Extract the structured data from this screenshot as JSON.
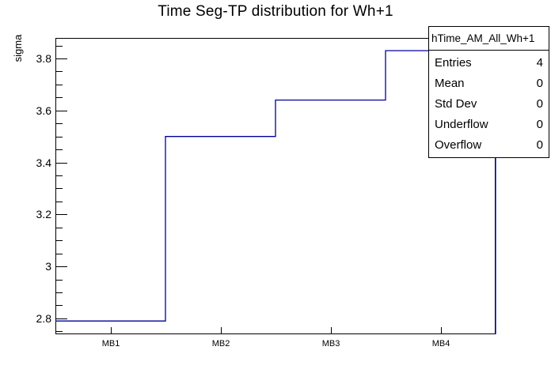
{
  "title": "Time Seg-TP distribution for Wh+1",
  "axes": {
    "y_label": "sigma",
    "y_ticks": [
      {
        "value": 2.8,
        "label": "2.8"
      },
      {
        "value": 3.0,
        "label": "3"
      },
      {
        "value": 3.2,
        "label": "3.2"
      },
      {
        "value": 3.4,
        "label": "3.4"
      },
      {
        "value": 3.6,
        "label": "3.6"
      },
      {
        "value": 3.8,
        "label": "3.8"
      }
    ],
    "y_minor_step": 0.05,
    "x_labels": [
      "MB1",
      "MB2",
      "MB3",
      "MB4"
    ]
  },
  "stats_box": {
    "header": "hTime_AM_All_Wh+1",
    "rows": [
      {
        "label": "Entries",
        "value": "4"
      },
      {
        "label": "Mean",
        "value": "0"
      },
      {
        "label": "Std Dev",
        "value": "0"
      },
      {
        "label": "Underflow",
        "value": "0"
      },
      {
        "label": "Overflow",
        "value": "0"
      }
    ]
  },
  "colors": {
    "line": "#000099",
    "frame": "#000000",
    "background": "#ffffff"
  },
  "chart_data": {
    "type": "line",
    "style": "step-histogram",
    "categories": [
      "MB1",
      "MB2",
      "MB3",
      "MB4"
    ],
    "values": [
      2.79,
      3.5,
      3.64,
      3.83
    ],
    "title": "Time Seg-TP distribution for Wh+1",
    "xlabel": "",
    "ylabel": "sigma",
    "ylim": [
      2.739,
      3.879
    ],
    "grid": false,
    "legend": false,
    "line_color": "#000099"
  }
}
